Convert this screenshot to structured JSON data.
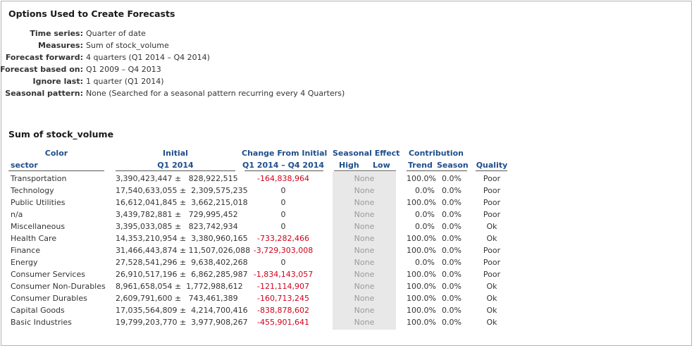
{
  "options": {
    "title": "Options Used to Create Forecasts",
    "rows": [
      {
        "label": "Time series:",
        "value": "Quarter of date"
      },
      {
        "label": "Measures:",
        "value": "Sum of stock_volume"
      },
      {
        "label": "Forecast forward:",
        "value": "4 quarters (Q1 2014 – Q4 2014)"
      },
      {
        "label": "Forecast based on:",
        "value": "Q1 2009 – Q4 2013"
      },
      {
        "label": "Ignore last:",
        "value": "1 quarter (Q1 2014)"
      },
      {
        "label": "Seasonal pattern:",
        "value": "None (Searched for a seasonal pattern recurring every 4 Quarters)"
      }
    ]
  },
  "table": {
    "title": "Sum of stock_volume",
    "headers": {
      "color": "Color",
      "sector": "sector",
      "initial_top": "Initial",
      "initial_sub": "Q1 2014",
      "change_top": "Change From Initial",
      "change_sub": "Q1 2014 – Q4 2014",
      "seasonal_top": "Seasonal Effect",
      "seasonal_high": "High",
      "seasonal_low": "Low",
      "contribution_top": "Contribution",
      "trend": "Trend",
      "season": "Season",
      "quality": "Quality"
    },
    "colors": {
      "header": "#1f4e8c",
      "negative": "#d0021b",
      "neutral": "#333333",
      "seasonal_bg": "#e8e8e8"
    },
    "rows": [
      {
        "sector": "Transportation",
        "initial": "3,390,423,447 ±   828,922,515",
        "change": "-164,838,964",
        "negative": true,
        "seasonal": "None",
        "trend": "100.0%",
        "season": "0.0%",
        "quality": "Poor"
      },
      {
        "sector": "Technology",
        "initial": "17,540,633,055 ±  2,309,575,235",
        "change": "0",
        "negative": false,
        "seasonal": "None",
        "trend": "0.0%",
        "season": "0.0%",
        "quality": "Poor"
      },
      {
        "sector": "Public Utilities",
        "initial": "16,612,041,845 ±  3,662,215,018",
        "change": "0",
        "negative": false,
        "seasonal": "None",
        "trend": "100.0%",
        "season": "0.0%",
        "quality": "Poor"
      },
      {
        "sector": "n/a",
        "initial": "3,439,782,881 ±   729,995,452",
        "change": "0",
        "negative": false,
        "seasonal": "None",
        "trend": "0.0%",
        "season": "0.0%",
        "quality": "Poor"
      },
      {
        "sector": "Miscellaneous",
        "initial": "3,395,033,085 ±   823,742,934",
        "change": "0",
        "negative": false,
        "seasonal": "None",
        "trend": "0.0%",
        "season": "0.0%",
        "quality": "Ok"
      },
      {
        "sector": "Health Care",
        "initial": "14,353,210,954 ±  3,380,960,165",
        "change": "-733,282,466",
        "negative": true,
        "seasonal": "None",
        "trend": "100.0%",
        "season": "0.0%",
        "quality": "Ok"
      },
      {
        "sector": "Finance",
        "initial": "31,466,443,874 ± 11,507,026,088",
        "change": "-3,729,303,008",
        "negative": true,
        "seasonal": "None",
        "trend": "100.0%",
        "season": "0.0%",
        "quality": "Poor"
      },
      {
        "sector": "Energy",
        "initial": "27,528,541,296 ±  9,638,402,268",
        "change": "0",
        "negative": false,
        "seasonal": "None",
        "trend": "0.0%",
        "season": "0.0%",
        "quality": "Poor"
      },
      {
        "sector": "Consumer Services",
        "initial": "26,910,517,196 ±  6,862,285,987",
        "change": "-1,834,143,057",
        "negative": true,
        "seasonal": "None",
        "trend": "100.0%",
        "season": "0.0%",
        "quality": "Poor"
      },
      {
        "sector": "Consumer Non-Durables",
        "initial": "8,961,658,054 ±  1,772,988,612",
        "change": "-121,114,907",
        "negative": true,
        "seasonal": "None",
        "trend": "100.0%",
        "season": "0.0%",
        "quality": "Ok"
      },
      {
        "sector": "Consumer Durables",
        "initial": "2,609,791,600 ±   743,461,389",
        "change": "-160,713,245",
        "negative": true,
        "seasonal": "None",
        "trend": "100.0%",
        "season": "0.0%",
        "quality": "Ok"
      },
      {
        "sector": "Capital Goods",
        "initial": "17,035,564,809 ±  4,214,700,416",
        "change": "-838,878,602",
        "negative": true,
        "seasonal": "None",
        "trend": "100.0%",
        "season": "0.0%",
        "quality": "Ok"
      },
      {
        "sector": "Basic Industries",
        "initial": "19,799,203,770 ±  3,977,908,267",
        "change": "-455,901,641",
        "negative": true,
        "seasonal": "None",
        "trend": "100.0%",
        "season": "0.0%",
        "quality": "Ok"
      }
    ]
  }
}
